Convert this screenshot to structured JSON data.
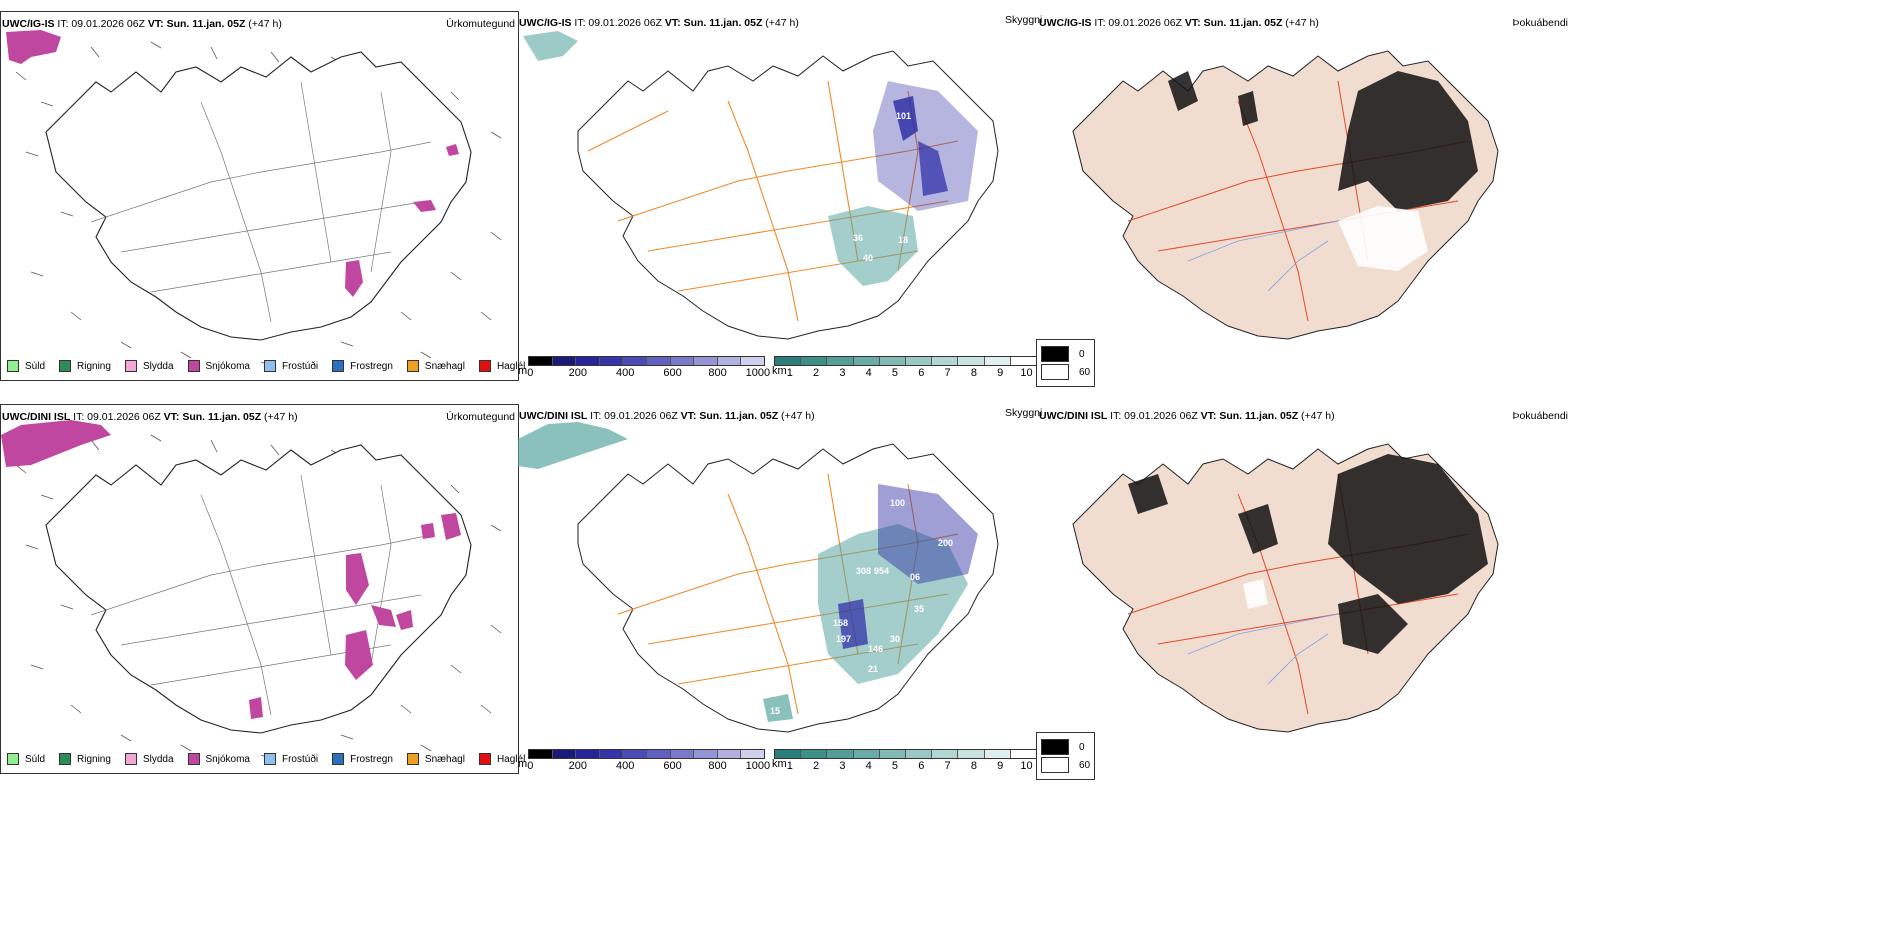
{
  "rows": [
    {
      "model": "UWC/IG-IS",
      "it_label": "IT: 09.01.2026 06Z",
      "vt_label": "VT: Sun. 11.jan. 05Z",
      "lead": "(+47 h)"
    },
    {
      "model": "UWC/DINI ISL",
      "it_label": "IT: 09.01.2026 06Z",
      "vt_label": "VT: Sun. 11.jan. 05Z",
      "lead": "(+47 h)"
    }
  ],
  "panels": {
    "precip_type": "Úrkomutegund",
    "visibility": "Skyggni",
    "fog": "Þokuábendi"
  },
  "precip_legend": [
    {
      "label": "Súld",
      "color": "#90ee90"
    },
    {
      "label": "Rigning",
      "color": "#2e8b57"
    },
    {
      "label": "Slydda",
      "color": "#f4a6d7"
    },
    {
      "label": "Snjókoma",
      "color": "#c0479f"
    },
    {
      "label": "Frostúði",
      "color": "#8fbfef"
    },
    {
      "label": "Frostregn",
      "color": "#2b6fbd"
    },
    {
      "label": "Snæhagl",
      "color": "#f0a020"
    },
    {
      "label": "Haglél",
      "color": "#e01010"
    }
  ],
  "ceiling_scale": {
    "unit": "m",
    "ticks": [
      "0",
      "200",
      "400",
      "600",
      "800",
      "1000"
    ],
    "colors": [
      "#000000",
      "#1a1a7a",
      "#25259a",
      "#3535aa",
      "#4b4bb5",
      "#6161c0",
      "#7a7acb",
      "#9595d6",
      "#b1b1e2",
      "#cfcfee"
    ]
  },
  "visibility_scale": {
    "unit": "km",
    "ticks": [
      "1",
      "2",
      "3",
      "4",
      "5",
      "6",
      "7",
      "8",
      "9",
      "10"
    ],
    "colors": [
      "#2a7d78",
      "#3d8f8a",
      "#539e99",
      "#6aaca8",
      "#82bab6",
      "#9ac8c5",
      "#b2d6d3",
      "#c9e3e1",
      "#e0f0ef",
      "#ffffff"
    ]
  },
  "fog_scale": {
    "entries": [
      {
        "label": "0",
        "color": "#000000"
      },
      {
        "label": "60",
        "color": "#ffffff"
      }
    ]
  },
  "ceiling_labels": {
    "top": [
      "101",
      "95",
      "36",
      "40",
      "18",
      "54"
    ],
    "bottom": [
      "100",
      "200",
      "308",
      "954",
      "06",
      "158",
      "197",
      "146",
      "30",
      "21",
      "35",
      "15"
    ]
  },
  "colors": {
    "snow": "#c0479f",
    "road_orange": "#f08a2a",
    "road_red": "#e04a2a",
    "land_fog": "#f1ddd0",
    "river_blue": "#7f9fe8",
    "ceiling_blue": "#2a2aa5",
    "visibility_teal": "#5aa6a0"
  }
}
